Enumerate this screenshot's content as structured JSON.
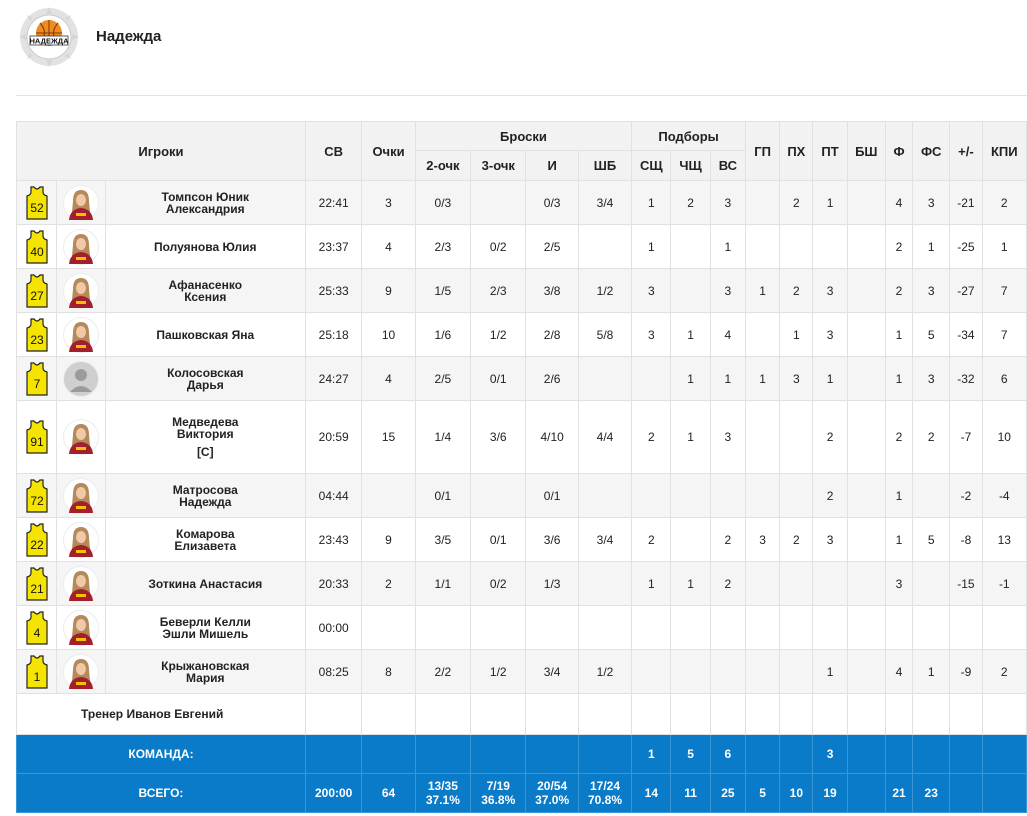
{
  "team": {
    "name": "Надежда",
    "logo_text": "НАДЕЖДА"
  },
  "headers": {
    "players": "Игроки",
    "min": "СВ",
    "pts": "Очки",
    "shots": "Броски",
    "two": "2-очк",
    "three": "3-очк",
    "fg": "И",
    "ft": "ШБ",
    "rebounds": "Подборы",
    "def": "СЩ",
    "off": "ЧЩ",
    "tot": "ВС",
    "ast": "ГП",
    "to": "ПХ",
    "stl": "ПТ",
    "blk": "БШ",
    "pf": "Ф",
    "fd": "ФС",
    "pm": "+/-",
    "eff": "КПИ"
  },
  "players": [
    {
      "num": "52",
      "name1": "Томпсон Юник",
      "name2": "Александрия",
      "cap": "",
      "min": "22:41",
      "pts": "3",
      "two": "0/3",
      "three": "",
      "fg": "0/3",
      "ft": "3/4",
      "def": "1",
      "off": "2",
      "tot": "3",
      "ast": "",
      "to": "2",
      "stl": "1",
      "blk": "",
      "pf": "4",
      "fd": "3",
      "pm": "-21",
      "eff": "2"
    },
    {
      "num": "40",
      "name1": "Полуянова Юлия",
      "name2": "",
      "cap": "",
      "min": "23:37",
      "pts": "4",
      "two": "2/3",
      "three": "0/2",
      "fg": "2/5",
      "ft": "",
      "def": "1",
      "off": "",
      "tot": "1",
      "ast": "",
      "to": "",
      "stl": "",
      "blk": "",
      "pf": "2",
      "fd": "1",
      "pm": "-25",
      "eff": "1"
    },
    {
      "num": "27",
      "name1": "Афанасенко",
      "name2": "Ксения",
      "cap": "",
      "min": "25:33",
      "pts": "9",
      "two": "1/5",
      "three": "2/3",
      "fg": "3/8",
      "ft": "1/2",
      "def": "3",
      "off": "",
      "tot": "3",
      "ast": "1",
      "to": "2",
      "stl": "3",
      "blk": "",
      "pf": "2",
      "fd": "3",
      "pm": "-27",
      "eff": "7"
    },
    {
      "num": "23",
      "name1": "Пашковская Яна",
      "name2": "",
      "cap": "",
      "min": "25:18",
      "pts": "10",
      "two": "1/6",
      "three": "1/2",
      "fg": "2/8",
      "ft": "5/8",
      "def": "3",
      "off": "1",
      "tot": "4",
      "ast": "",
      "to": "1",
      "stl": "3",
      "blk": "",
      "pf": "1",
      "fd": "5",
      "pm": "-34",
      "eff": "7"
    },
    {
      "num": "7",
      "name1": "Колосовская",
      "name2": "Дарья",
      "cap": "",
      "min": "24:27",
      "pts": "4",
      "two": "2/5",
      "three": "0/1",
      "fg": "2/6",
      "ft": "",
      "def": "",
      "off": "1",
      "tot": "1",
      "ast": "1",
      "to": "3",
      "stl": "1",
      "blk": "",
      "pf": "1",
      "fd": "3",
      "pm": "-32",
      "eff": "6"
    },
    {
      "num": "91",
      "name1": "Медведева",
      "name2": "Виктория",
      "cap": "[C]",
      "min": "20:59",
      "pts": "15",
      "two": "1/4",
      "three": "3/6",
      "fg": "4/10",
      "ft": "4/4",
      "def": "2",
      "off": "1",
      "tot": "3",
      "ast": "",
      "to": "",
      "stl": "2",
      "blk": "",
      "pf": "2",
      "fd": "2",
      "pm": "-7",
      "eff": "10"
    },
    {
      "num": "72",
      "name1": "Матросова",
      "name2": "Надежда",
      "cap": "",
      "min": "04:44",
      "pts": "",
      "two": "0/1",
      "three": "",
      "fg": "0/1",
      "ft": "",
      "def": "",
      "off": "",
      "tot": "",
      "ast": "",
      "to": "",
      "stl": "2",
      "blk": "",
      "pf": "1",
      "fd": "",
      "pm": "-2",
      "eff": "-4"
    },
    {
      "num": "22",
      "name1": "Комарова",
      "name2": "Елизавета",
      "cap": "",
      "min": "23:43",
      "pts": "9",
      "two": "3/5",
      "three": "0/1",
      "fg": "3/6",
      "ft": "3/4",
      "def": "2",
      "off": "",
      "tot": "2",
      "ast": "3",
      "to": "2",
      "stl": "3",
      "blk": "",
      "pf": "1",
      "fd": "5",
      "pm": "-8",
      "eff": "13"
    },
    {
      "num": "21",
      "name1": "Зоткина Анастасия",
      "name2": "",
      "cap": "",
      "min": "20:33",
      "pts": "2",
      "two": "1/1",
      "three": "0/2",
      "fg": "1/3",
      "ft": "",
      "def": "1",
      "off": "1",
      "tot": "2",
      "ast": "",
      "to": "",
      "stl": "",
      "blk": "",
      "pf": "3",
      "fd": "",
      "pm": "-15",
      "eff": "-1"
    },
    {
      "num": "4",
      "name1": "Беверли Келли",
      "name2": "Эшли Мишель",
      "cap": "",
      "min": "00:00",
      "pts": "",
      "two": "",
      "three": "",
      "fg": "",
      "ft": "",
      "def": "",
      "off": "",
      "tot": "",
      "ast": "",
      "to": "",
      "stl": "",
      "blk": "",
      "pf": "",
      "fd": "",
      "pm": "",
      "eff": ""
    },
    {
      "num": "1",
      "name1": "Крыжановская",
      "name2": "Мария",
      "cap": "",
      "min": "08:25",
      "pts": "8",
      "two": "2/2",
      "three": "1/2",
      "fg": "3/4",
      "ft": "1/2",
      "def": "",
      "off": "",
      "tot": "",
      "ast": "",
      "to": "",
      "stl": "1",
      "blk": "",
      "pf": "4",
      "fd": "1",
      "pm": "-9",
      "eff": "2"
    }
  ],
  "coach": "Тренер Иванов Евгений",
  "team_row": {
    "label": "КОМАНДА:",
    "def": "1",
    "off": "5",
    "tot": "6",
    "stl": "3"
  },
  "total_row": {
    "label": "ВСЕГО:",
    "min": "200:00",
    "pts": "64",
    "two": "13/35",
    "two_pct": "37.1%",
    "three": "7/19",
    "three_pct": "36.8%",
    "fg": "20/54",
    "fg_pct": "37.0%",
    "ft": "17/24",
    "ft_pct": "70.8%",
    "def": "14",
    "off": "11",
    "tot": "25",
    "ast": "5",
    "to": "10",
    "stl": "19",
    "blk": "",
    "pf": "21",
    "fd": "23",
    "pm": "",
    "eff": ""
  },
  "colors": {
    "jersey": "#f5e400",
    "jersey_outline": "#222222",
    "total_bg": "#0a7bc9",
    "header_bg": "#f2f2f2",
    "logo_orange": "#f08a24"
  }
}
